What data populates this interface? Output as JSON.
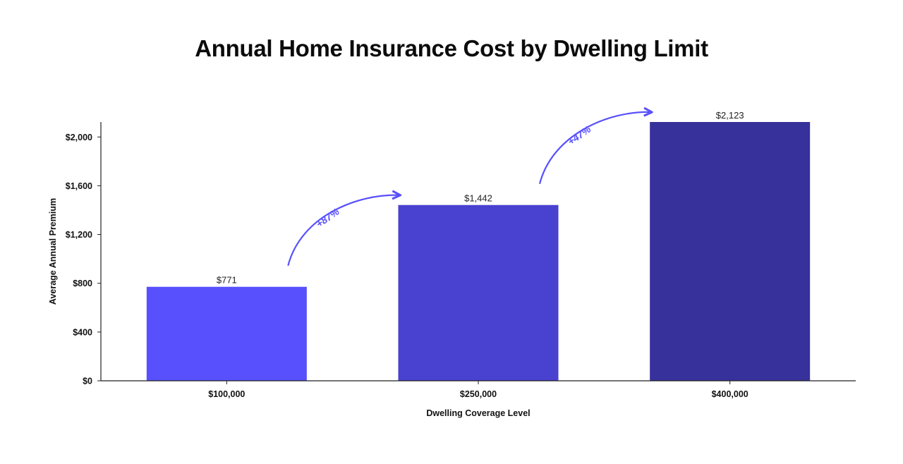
{
  "chart_data": {
    "type": "bar",
    "title": "Annual Home Insurance Cost by Dwelling Limit",
    "xlabel": "Dwelling Coverage Level",
    "ylabel": "Average Annual Premium",
    "categories": [
      "$100,000",
      "$250,000",
      "$400,000"
    ],
    "values": [
      771,
      1442,
      2123
    ],
    "value_labels": [
      "$771",
      "$1,442",
      "$2,123"
    ],
    "bar_colors": [
      "#5850fd",
      "#4941cf",
      "#37319b"
    ],
    "ylim": [
      0,
      2123
    ],
    "yticks": [
      0,
      400,
      800,
      1200,
      1600,
      2000
    ],
    "ytick_labels": [
      "$0",
      "$400",
      "$800",
      "$1,200",
      "$1,600",
      "$2,000"
    ],
    "grid": false,
    "annotations": [
      {
        "text": "+87%",
        "from_category": 0,
        "to_category": 1
      },
      {
        "text": "+47%",
        "from_category": 1,
        "to_category": 2
      }
    ],
    "annotation_color": "#5850fd"
  }
}
